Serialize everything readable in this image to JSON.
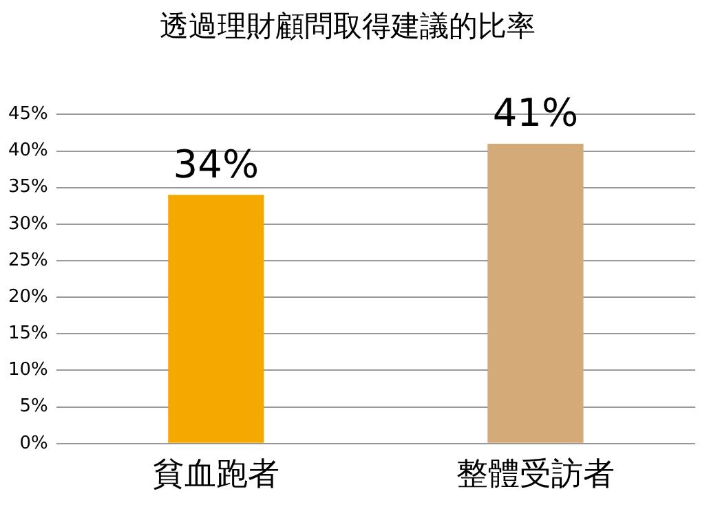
{
  "chart_data": {
    "type": "bar",
    "title": "透過理財顧問取得建議的比率",
    "categories": [
      "貧血跑者",
      "整體受訪者"
    ],
    "values": [
      34,
      41
    ],
    "colors": [
      "#f5a800",
      "#d4aa78"
    ],
    "value_labels": [
      "34%",
      "41%"
    ],
    "ylim": [
      0,
      45
    ],
    "yticks": [
      {
        "value": 0,
        "label": "0%"
      },
      {
        "value": 5,
        "label": "5%"
      },
      {
        "value": 10,
        "label": "10%"
      },
      {
        "value": 15,
        "label": "15%"
      },
      {
        "value": 20,
        "label": "20%"
      },
      {
        "value": 25,
        "label": "25%"
      },
      {
        "value": 30,
        "label": "30%"
      },
      {
        "value": 35,
        "label": "35%"
      },
      {
        "value": 40,
        "label": "40%"
      },
      {
        "value": 45,
        "label": "45%"
      }
    ],
    "grid": "y"
  }
}
